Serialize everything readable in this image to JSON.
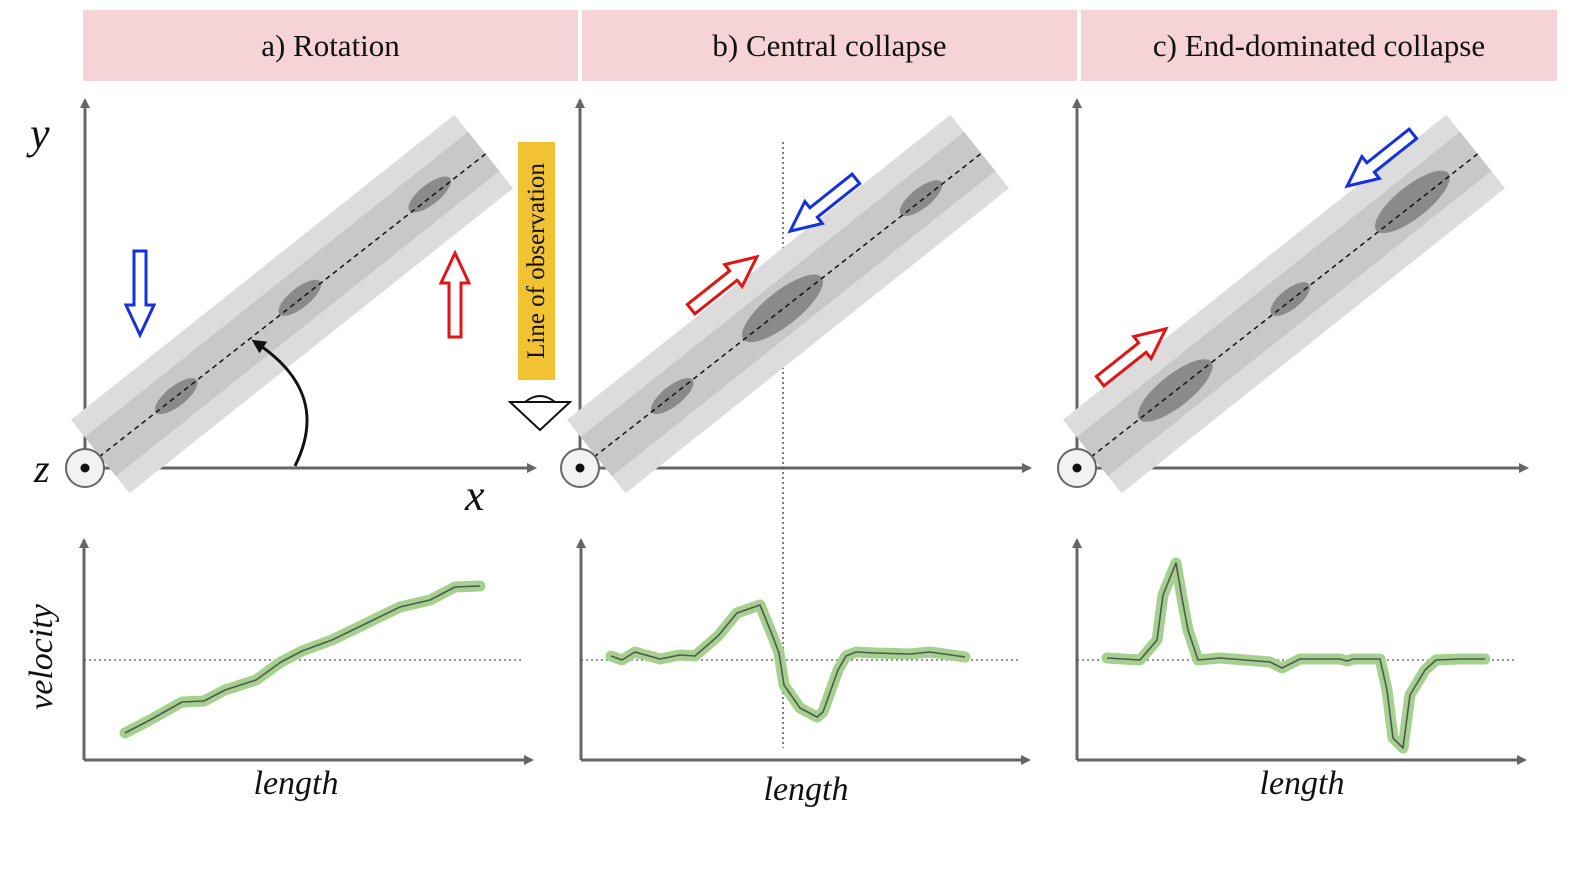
{
  "panels": [
    {
      "header": "a) Rotation"
    },
    {
      "header": "b) Central collapse"
    },
    {
      "header": "c) End-dominated collapse"
    }
  ],
  "axis_labels": {
    "y": "y",
    "x": "x",
    "z": "z",
    "velocity": "velocity",
    "length": "length"
  },
  "line_of_observation": "Line of observation",
  "colors": {
    "header_bg": "#f5d3d6",
    "filament_outer": "#dcdcdc",
    "filament_inner": "#c8c8c8",
    "clump": "#8a8a8a",
    "blue_arrow": "#1530e0",
    "red_arrow": "#e01515",
    "velocity_line": "#a4d18e",
    "axis": "#666666",
    "label_bg": "#f2c233"
  }
}
